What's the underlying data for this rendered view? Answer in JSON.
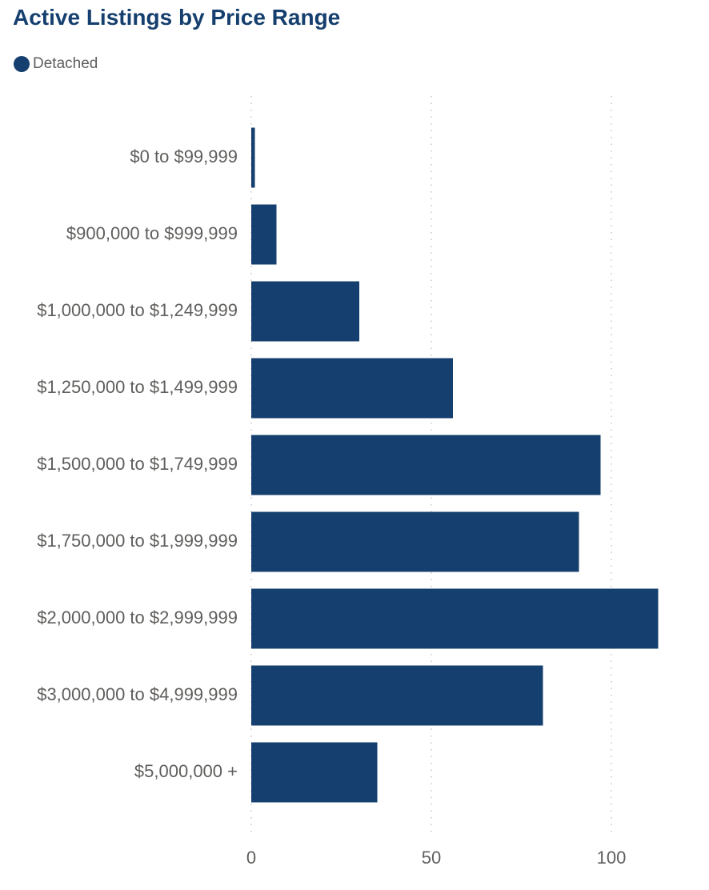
{
  "chart_data": {
    "type": "bar",
    "orientation": "horizontal",
    "title": "Active Listings by Price Range",
    "categories": [
      "$0 to $99,999",
      "$900,000 to $999,999",
      "$1,000,000 to $1,249,999",
      "$1,250,000 to $1,499,999",
      "$1,500,000 to $1,749,999",
      "$1,750,000 to $1,999,999",
      "$2,000,000 to $2,999,999",
      "$3,000,000 to $4,999,999",
      "$5,000,000 +"
    ],
    "series": [
      {
        "name": "Detached",
        "color": "#153F6E",
        "values": [
          1,
          7,
          30,
          56,
          97,
          91,
          113,
          81,
          35
        ]
      }
    ],
    "xticks": [
      "0",
      "50",
      "100"
    ],
    "xtick_values": [
      0,
      50,
      100
    ],
    "xlim": [
      0,
      113
    ],
    "grid": true,
    "legend": "top-left"
  }
}
